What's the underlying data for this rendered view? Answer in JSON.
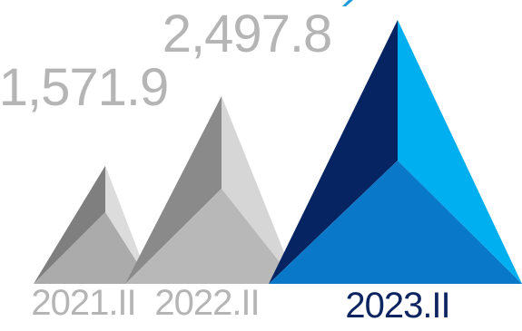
{
  "chart_data": {
    "type": "bar",
    "categories": [
      "2021.II",
      "2022.II",
      "2023.II"
    ],
    "values": [
      1571.9,
      2497.8,
      null
    ],
    "value_labels": [
      "1,571.9",
      "2,497.8",
      ""
    ],
    "ylim": [
      0,
      3500
    ],
    "grid": false,
    "legend": "none",
    "colors": {
      "past_label": "#B5B5B5",
      "current_label": "#0D2461",
      "peak1": {
        "left": "#7F7F7F",
        "right": "#DCDCDC",
        "front": "#ABABAB"
      },
      "peak2": {
        "left": "#8A8A8A",
        "right": "#D6D6D6",
        "front": "#B8B8B8"
      },
      "peak3": {
        "left": "#062462",
        "right": "#00AFEF",
        "front": "#0A78C8"
      },
      "accent_stroke": "#1F9BD9"
    }
  }
}
